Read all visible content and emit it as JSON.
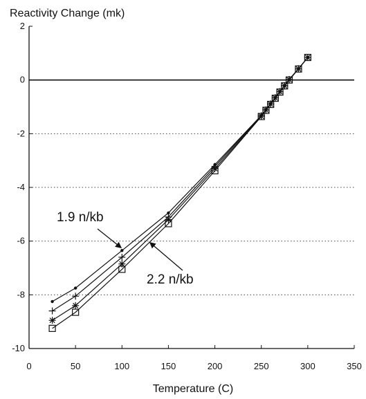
{
  "chart_data": {
    "type": "line",
    "title": "",
    "ylabel": "Reactivity Change (mk)",
    "xlabel": "Temperature (C)",
    "xlim": [
      0,
      350
    ],
    "ylim": [
      -10,
      2
    ],
    "x_ticks": [
      "0",
      "50",
      "100",
      "150",
      "200",
      "250",
      "300",
      "350"
    ],
    "y_ticks": [
      "2",
      "0",
      "-2",
      "-4",
      "-6",
      "-8",
      "-10"
    ],
    "grid": "dotted horizontal at y = -2, -4, -6, -8",
    "x": [
      25,
      50,
      100,
      150,
      200,
      250,
      255,
      260,
      265,
      270,
      275,
      280,
      290,
      300
    ],
    "series": [
      {
        "marker": "dot",
        "values": [
          -8.25,
          -7.75,
          -6.35,
          -4.95,
          -3.15,
          -1.32,
          -1.1,
          -0.88,
          -0.65,
          -0.43,
          -0.21,
          0.02,
          0.42,
          0.84
        ]
      },
      {
        "marker": "plus",
        "values": [
          -8.6,
          -8.05,
          -6.6,
          -5.1,
          -3.22,
          -1.33,
          -1.11,
          -0.89,
          -0.66,
          -0.43,
          -0.21,
          0.02,
          0.42,
          0.84
        ]
      },
      {
        "marker": "star",
        "values": [
          -8.95,
          -8.4,
          -6.85,
          -5.2,
          -3.3,
          -1.35,
          -1.12,
          -0.9,
          -0.67,
          -0.44,
          -0.22,
          0.01,
          0.41,
          0.84
        ]
      },
      {
        "marker": "square",
        "values": [
          -9.25,
          -8.65,
          -7.05,
          -5.35,
          -3.38,
          -1.36,
          -1.13,
          -0.91,
          -0.68,
          -0.45,
          -0.22,
          0.0,
          0.41,
          0.84
        ]
      }
    ],
    "annotations": [
      {
        "text": "1.9 n/kb",
        "points_to_series": 0
      },
      {
        "text": "2.2 n/kb",
        "points_to_series": 3
      }
    ]
  }
}
